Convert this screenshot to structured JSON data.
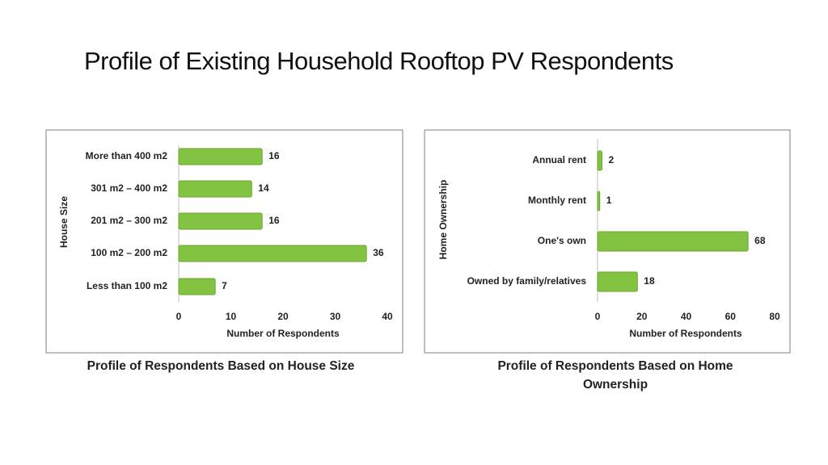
{
  "title": "Profile of Existing Household Rooftop PV Respondents",
  "chart_data": [
    {
      "type": "bar",
      "title": "Profile of Respondents Based on House Size",
      "x_label": "Number of Respondents",
      "y_label": "House Size",
      "categories": [
        "More than 400 m2",
        "301 m2 – 400 m2",
        "201 m2 – 300 m2",
        "100 m2 – 200 m2",
        "Less than 100 m2"
      ],
      "values": [
        16,
        14,
        16,
        36,
        7
      ],
      "color": "#82c341",
      "xlim": [
        0,
        40
      ],
      "xticks": [
        0,
        10,
        20,
        30,
        40
      ],
      "grid": false
    },
    {
      "type": "bar",
      "title": "Profile of Respondents Based on Home Ownership",
      "x_label": "Number of Respondents",
      "y_label": "Home Ownership",
      "categories": [
        "Annual rent",
        "Monthly rent",
        "One's own",
        "Owned by family/relatives"
      ],
      "values": [
        2,
        1,
        68,
        18
      ],
      "color": "#82c341",
      "xlim": [
        0,
        80
      ],
      "xticks": [
        0,
        20,
        40,
        60,
        80
      ],
      "grid": false
    }
  ]
}
